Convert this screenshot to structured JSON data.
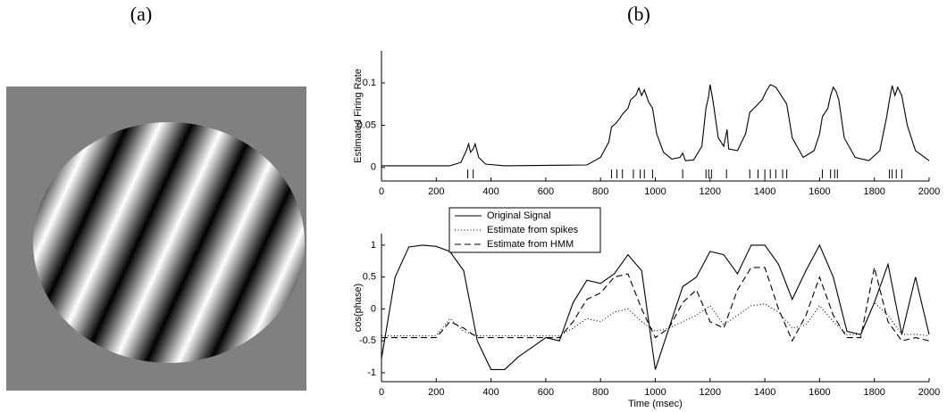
{
  "figure": {
    "label_a": "(a)",
    "label_b": "(b)"
  },
  "chart_data": [
    {
      "type": "line",
      "ylabel": "Estimated Firing Rate",
      "x": [
        0,
        250,
        290,
        310,
        318,
        325,
        335,
        342,
        355,
        380,
        450,
        750,
        800,
        830,
        840,
        855,
        870,
        880,
        900,
        910,
        930,
        940,
        950,
        960,
        975,
        990,
        1005,
        1030,
        1060,
        1090,
        1100,
        1110,
        1140,
        1170,
        1185,
        1195,
        1200,
        1210,
        1230,
        1250,
        1262,
        1268,
        1300,
        1330,
        1345,
        1360,
        1375,
        1390,
        1405,
        1420,
        1440,
        1460,
        1480,
        1500,
        1540,
        1580,
        1600,
        1610,
        1630,
        1640,
        1650,
        1660,
        1670,
        1690,
        1730,
        1780,
        1820,
        1845,
        1855,
        1865,
        1875,
        1885,
        1900,
        1920,
        1950,
        2000
      ],
      "series": [
        {
          "color": "#000000",
          "dash": "solid",
          "values": [
            0.002,
            0.002,
            0.006,
            0.02,
            0.028,
            0.018,
            0.022,
            0.028,
            0.012,
            0.004,
            0.002,
            0.003,
            0.012,
            0.03,
            0.048,
            0.052,
            0.058,
            0.063,
            0.07,
            0.08,
            0.086,
            0.094,
            0.085,
            0.092,
            0.078,
            0.07,
            0.04,
            0.018,
            0.01,
            0.012,
            0.017,
            0.008,
            0.009,
            0.025,
            0.07,
            0.085,
            0.098,
            0.08,
            0.035,
            0.025,
            0.045,
            0.022,
            0.02,
            0.04,
            0.065,
            0.07,
            0.075,
            0.08,
            0.09,
            0.098,
            0.095,
            0.085,
            0.075,
            0.035,
            0.012,
            0.02,
            0.04,
            0.06,
            0.07,
            0.085,
            0.095,
            0.09,
            0.08,
            0.035,
            0.012,
            0.008,
            0.02,
            0.06,
            0.08,
            0.097,
            0.085,
            0.095,
            0.085,
            0.05,
            0.02,
            0.008
          ]
        }
      ],
      "raster": {
        "color": "#000000",
        "x": [
          315,
          335,
          840,
          860,
          880,
          920,
          945,
          960,
          990,
          1100,
          1185,
          1195,
          1205,
          1260,
          1345,
          1375,
          1400,
          1420,
          1440,
          1465,
          1480,
          1610,
          1640,
          1655,
          1665,
          1855,
          1865,
          1880,
          1900
        ]
      },
      "xlim": [
        0,
        2000
      ],
      "xticks": [
        0,
        200,
        400,
        600,
        800,
        1000,
        1200,
        1400,
        1600,
        1800,
        2000
      ],
      "ylim": [
        -0.016,
        0.138
      ],
      "yticks": [
        0,
        0.05,
        0.1
      ]
    },
    {
      "type": "line",
      "xlabel": "Time (msec)",
      "ylabel": "cos(phase)",
      "legend": "top left",
      "x": [
        0,
        50,
        100,
        150,
        200,
        250,
        300,
        350,
        400,
        450,
        500,
        550,
        600,
        650,
        700,
        750,
        800,
        850,
        900,
        950,
        1000,
        1050,
        1100,
        1150,
        1200,
        1250,
        1300,
        1350,
        1400,
        1450,
        1500,
        1550,
        1600,
        1650,
        1700,
        1750,
        1800,
        1850,
        1900,
        1950,
        2000
      ],
      "series": [
        {
          "name": "Original Signal",
          "color": "#000000",
          "dash": "solid",
          "values": [
            -0.78,
            0.5,
            0.97,
            1.0,
            0.98,
            0.9,
            0.6,
            -0.5,
            -0.95,
            -0.95,
            -0.75,
            -0.6,
            -0.45,
            -0.5,
            0.1,
            0.45,
            0.4,
            0.55,
            0.85,
            0.6,
            -0.95,
            -0.3,
            0.35,
            0.5,
            0.9,
            0.85,
            0.55,
            1.0,
            1.0,
            0.7,
            0.15,
            0.6,
            1.0,
            0.5,
            -0.35,
            -0.4,
            0.1,
            0.7,
            -0.4,
            0.5,
            -0.4
          ]
        },
        {
          "name": "Estimate from spikes",
          "color": "#000000",
          "dash": "dotted",
          "values": [
            -0.42,
            -0.42,
            -0.42,
            -0.42,
            -0.42,
            -0.15,
            -0.35,
            -0.42,
            -0.42,
            -0.42,
            -0.42,
            -0.42,
            -0.42,
            -0.42,
            -0.3,
            -0.15,
            -0.2,
            -0.05,
            0.0,
            -0.2,
            -0.35,
            -0.3,
            -0.2,
            -0.1,
            0.05,
            -0.25,
            -0.1,
            0.05,
            0.08,
            -0.05,
            -0.3,
            -0.25,
            0.05,
            -0.2,
            -0.4,
            -0.4,
            0.1,
            -0.1,
            -0.4,
            -0.4,
            -0.42
          ]
        },
        {
          "name": "Estimate from HMM",
          "color": "#000000",
          "dash": "dashed",
          "values": [
            -0.45,
            -0.45,
            -0.45,
            -0.45,
            -0.45,
            -0.2,
            -0.3,
            -0.45,
            -0.45,
            -0.45,
            -0.45,
            -0.45,
            -0.45,
            -0.45,
            -0.2,
            0.15,
            0.25,
            0.5,
            0.55,
            0.0,
            -0.45,
            -0.3,
            0.1,
            0.3,
            -0.2,
            -0.3,
            0.3,
            0.65,
            0.65,
            0.0,
            -0.5,
            -0.1,
            0.5,
            -0.1,
            -0.45,
            -0.45,
            0.65,
            -0.2,
            -0.5,
            -0.45,
            -0.5
          ]
        }
      ],
      "xlim": [
        0,
        2000
      ],
      "xticks": [
        0,
        200,
        400,
        600,
        800,
        1000,
        1200,
        1400,
        1600,
        1800,
        2000
      ],
      "ylim": [
        -1.14,
        1.18
      ],
      "yticks": [
        -1,
        -0.5,
        0,
        0.5,
        1
      ]
    }
  ]
}
